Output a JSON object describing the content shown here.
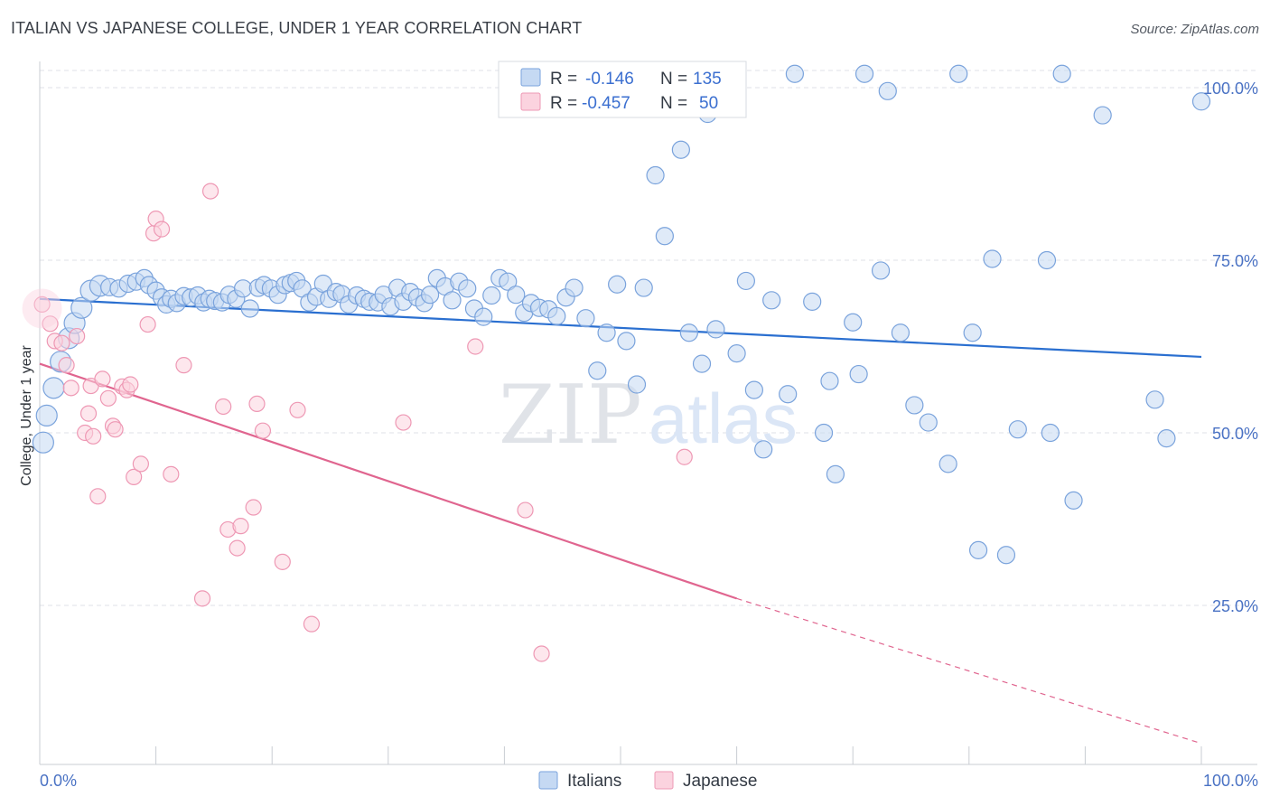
{
  "header": {
    "title": "ITALIAN VS JAPANESE COLLEGE, UNDER 1 YEAR CORRELATION CHART",
    "source": "Source: ZipAtlas.com"
  },
  "watermark": {
    "zip": "ZIP",
    "atlas": "atlas"
  },
  "legend": {
    "rows": [
      {
        "r_label": "R =",
        "r_value": "-0.146",
        "n_label": "N =",
        "n_value": "135",
        "color": "#a8c6f0"
      },
      {
        "r_label": "R =",
        "r_value": "-0.457",
        "n_label": "N =",
        "n_value": "50",
        "color": "#f7b8cb"
      }
    ]
  },
  "bottom_legend": {
    "italians": "Italians",
    "japanese": "Japanese"
  },
  "chart_data": {
    "type": "scatter",
    "ylabel": "College, Under 1 year",
    "xlim": [
      0,
      100
    ],
    "ylim": [
      0,
      105
    ],
    "y_ticks": [
      {
        "value": 100,
        "label": "100.0%"
      },
      {
        "value": 75,
        "label": "75.0%"
      },
      {
        "value": 50,
        "label": "50.0%"
      },
      {
        "value": 25,
        "label": "25.0%"
      }
    ],
    "x_tick_labels": {
      "left": "0.0%",
      "right": "100.0%"
    },
    "grid": true,
    "colors": {
      "italians_fill": "#c5d9f3",
      "italians_stroke": "#7aa3dc",
      "italians_line": "#2a6fd0",
      "japanese_fill": "#fbd3df",
      "japanese_stroke": "#ee98b4",
      "japanese_line": "#e0658f"
    },
    "series": [
      {
        "name": "Italians",
        "trend": {
          "x": [
            0,
            100
          ],
          "y": [
            69.4,
            61.0
          ]
        },
        "points": [
          [
            0.3,
            48.6
          ],
          [
            0.6,
            52.5
          ],
          [
            1.2,
            56.5
          ],
          [
            1.8,
            60.3
          ],
          [
            2.5,
            63.7
          ],
          [
            3.0,
            65.9
          ],
          [
            3.6,
            68.1
          ],
          [
            4.4,
            70.6
          ],
          [
            5.2,
            71.3
          ],
          [
            6.0,
            71.1
          ],
          [
            6.8,
            70.9
          ],
          [
            7.6,
            71.6
          ],
          [
            8.3,
            71.9
          ],
          [
            9.0,
            72.4
          ],
          [
            9.4,
            71.4
          ],
          [
            10.0,
            70.6
          ],
          [
            10.5,
            69.6
          ],
          [
            10.9,
            68.6
          ],
          [
            11.3,
            69.4
          ],
          [
            11.8,
            68.8
          ],
          [
            12.4,
            69.8
          ],
          [
            13.0,
            69.6
          ],
          [
            13.6,
            69.9
          ],
          [
            14.1,
            68.9
          ],
          [
            14.6,
            69.4
          ],
          [
            15.1,
            69.1
          ],
          [
            15.7,
            68.9
          ],
          [
            16.3,
            70.0
          ],
          [
            16.9,
            69.4
          ],
          [
            17.5,
            70.9
          ],
          [
            18.1,
            68.0
          ],
          [
            18.8,
            71.0
          ],
          [
            19.3,
            71.4
          ],
          [
            19.9,
            70.9
          ],
          [
            20.5,
            70.0
          ],
          [
            21.1,
            71.4
          ],
          [
            21.6,
            71.7
          ],
          [
            22.1,
            72.0
          ],
          [
            22.6,
            70.9
          ],
          [
            23.2,
            68.9
          ],
          [
            23.8,
            69.7
          ],
          [
            24.4,
            71.6
          ],
          [
            24.9,
            69.4
          ],
          [
            25.5,
            70.4
          ],
          [
            26.0,
            70.1
          ],
          [
            26.6,
            68.6
          ],
          [
            27.3,
            69.9
          ],
          [
            27.9,
            69.4
          ],
          [
            28.4,
            69.0
          ],
          [
            29.1,
            68.9
          ],
          [
            29.6,
            70.0
          ],
          [
            30.2,
            68.3
          ],
          [
            30.8,
            71.0
          ],
          [
            31.3,
            69.0
          ],
          [
            31.9,
            70.4
          ],
          [
            32.5,
            69.6
          ],
          [
            33.1,
            68.8
          ],
          [
            33.6,
            70.0
          ],
          [
            34.2,
            72.4
          ],
          [
            34.9,
            71.2
          ],
          [
            35.5,
            69.2
          ],
          [
            36.1,
            71.9
          ],
          [
            36.8,
            70.9
          ],
          [
            37.4,
            68.0
          ],
          [
            38.2,
            66.8
          ],
          [
            38.9,
            69.9
          ],
          [
            39.6,
            72.4
          ],
          [
            40.3,
            71.9
          ],
          [
            41.0,
            70.0
          ],
          [
            41.7,
            67.4
          ],
          [
            42.3,
            68.8
          ],
          [
            43.0,
            68.1
          ],
          [
            43.8,
            67.9
          ],
          [
            44.5,
            66.9
          ],
          [
            45.3,
            69.6
          ],
          [
            46.0,
            71.0
          ],
          [
            47.0,
            66.6
          ],
          [
            48.0,
            59.0
          ],
          [
            48.8,
            64.5
          ],
          [
            49.7,
            71.5
          ],
          [
            50.5,
            63.3
          ],
          [
            51.4,
            57.0
          ],
          [
            52.0,
            71.0
          ],
          [
            53.0,
            87.3
          ],
          [
            53.8,
            78.5
          ],
          [
            55.2,
            91.0
          ],
          [
            55.9,
            64.5
          ],
          [
            56.8,
            99.0
          ],
          [
            57.5,
            96.2
          ],
          [
            57.0,
            60.0
          ],
          [
            58.2,
            65.0
          ],
          [
            59.0,
            99.5
          ],
          [
            60.0,
            61.5
          ],
          [
            60.8,
            72.0
          ],
          [
            61.5,
            56.2
          ],
          [
            62.3,
            47.6
          ],
          [
            63.0,
            69.2
          ],
          [
            64.4,
            55.6
          ],
          [
            65.0,
            102.0
          ],
          [
            66.5,
            69.0
          ],
          [
            67.5,
            50.0
          ],
          [
            68.0,
            57.5
          ],
          [
            68.5,
            44.0
          ],
          [
            70.0,
            66.0
          ],
          [
            70.5,
            58.5
          ],
          [
            71.0,
            102.0
          ],
          [
            72.4,
            73.5
          ],
          [
            73.0,
            99.5
          ],
          [
            74.1,
            64.5
          ],
          [
            75.3,
            54.0
          ],
          [
            76.5,
            51.5
          ],
          [
            78.2,
            45.5
          ],
          [
            79.1,
            102.0
          ],
          [
            80.3,
            64.5
          ],
          [
            80.8,
            33.0
          ],
          [
            82.0,
            75.2
          ],
          [
            83.2,
            32.3
          ],
          [
            84.2,
            50.5
          ],
          [
            86.7,
            75.0
          ],
          [
            87.0,
            50.0
          ],
          [
            88.0,
            102.0
          ],
          [
            89.0,
            40.2
          ],
          [
            91.5,
            96.0
          ],
          [
            96.0,
            54.8
          ],
          [
            97.0,
            49.2
          ],
          [
            100.0,
            98.0
          ]
        ]
      },
      {
        "name": "Japanese",
        "trend": {
          "x": [
            0,
            60
          ],
          "y": [
            60.0,
            26.0
          ],
          "dashed_to": {
            "x": 100,
            "y": 5.0
          }
        },
        "points": [
          [
            0.2,
            68.6
          ],
          [
            0.9,
            65.8
          ],
          [
            1.3,
            63.3
          ],
          [
            1.9,
            63.0
          ],
          [
            2.3,
            59.8
          ],
          [
            2.7,
            56.5
          ],
          [
            3.2,
            64.0
          ],
          [
            3.9,
            50.0
          ],
          [
            4.2,
            52.8
          ],
          [
            4.4,
            56.8
          ],
          [
            4.6,
            49.5
          ],
          [
            5.0,
            40.8
          ],
          [
            5.4,
            57.8
          ],
          [
            5.9,
            55.0
          ],
          [
            6.3,
            51.0
          ],
          [
            6.5,
            50.5
          ],
          [
            7.1,
            56.7
          ],
          [
            7.5,
            56.2
          ],
          [
            7.8,
            57.0
          ],
          [
            8.1,
            43.6
          ],
          [
            8.7,
            45.5
          ],
          [
            9.3,
            65.7
          ],
          [
            9.8,
            78.9
          ],
          [
            10.0,
            81.0
          ],
          [
            10.5,
            79.5
          ],
          [
            11.3,
            44.0
          ],
          [
            12.4,
            59.8
          ],
          [
            14.0,
            26.0
          ],
          [
            14.7,
            85.0
          ],
          [
            15.8,
            53.8
          ],
          [
            16.2,
            36.0
          ],
          [
            17.0,
            33.3
          ],
          [
            17.3,
            36.5
          ],
          [
            18.4,
            39.2
          ],
          [
            18.7,
            54.2
          ],
          [
            19.2,
            50.3
          ],
          [
            20.9,
            31.3
          ],
          [
            22.2,
            53.3
          ],
          [
            23.4,
            22.3
          ],
          [
            31.3,
            51.5
          ],
          [
            37.5,
            62.5
          ],
          [
            41.8,
            38.8
          ],
          [
            43.2,
            18.0
          ],
          [
            55.5,
            46.5
          ]
        ]
      }
    ]
  }
}
